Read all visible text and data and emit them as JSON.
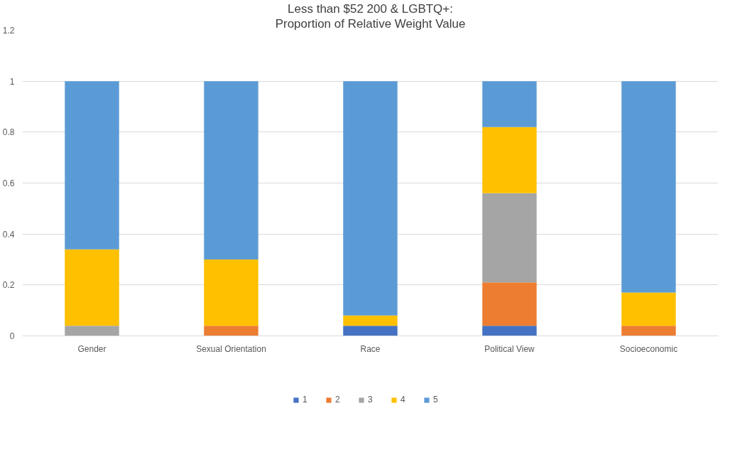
{
  "chart_data": {
    "type": "bar",
    "stacked": true,
    "title": "Less than $52 200 & LGBTQ+:",
    "subtitle": "Proportion of Relative Weight Value",
    "categories": [
      "Gender",
      "Sexual Orientation",
      "Race",
      "Political View",
      "Socioeconomic"
    ],
    "series": [
      {
        "name": "1",
        "color": "#4472c4",
        "values": [
          null,
          null,
          0.04,
          0.04,
          null
        ]
      },
      {
        "name": "2",
        "color": "#ed7d31",
        "values": [
          null,
          0.04,
          null,
          0.17,
          0.04
        ]
      },
      {
        "name": "3",
        "color": "#a5a5a5",
        "values": [
          0.04,
          null,
          null,
          0.35,
          null
        ]
      },
      {
        "name": "4",
        "color": "#ffc000",
        "values": [
          0.3,
          0.26,
          0.04,
          0.26,
          0.13
        ]
      },
      {
        "name": "5",
        "color": "#5b9bd5",
        "values": [
          0.66,
          0.7,
          0.92,
          0.18,
          0.83
        ]
      }
    ],
    "ylim": [
      0,
      1.2
    ],
    "yticks": [
      0,
      0.2,
      0.4,
      0.6,
      0.8,
      1,
      1.2
    ],
    "grid": "y",
    "legend": "bottom"
  }
}
